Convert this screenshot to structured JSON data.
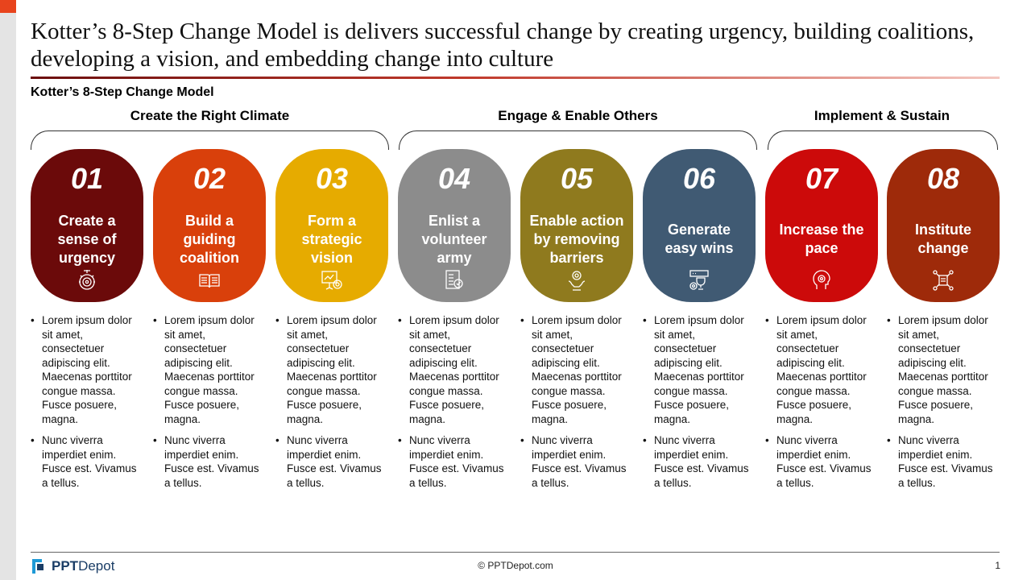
{
  "slide": {
    "title": "Kotter’s 8-Step Change Model is delivers successful change by creating urgency, building coalitions, developing a vision, and embedding change into culture",
    "subtitle": "Kotter’s 8-Step Change Model"
  },
  "groups": [
    {
      "label": "Create the Right Climate"
    },
    {
      "label": "Engage & Enable Others"
    },
    {
      "label": "Implement & Sustain"
    }
  ],
  "steps": [
    {
      "number": "01",
      "label_lines": [
        "Create a",
        "sense of",
        "urgency"
      ],
      "color": "#6b0a0a",
      "icon": "target-gear-icon",
      "bullets": [
        "Lorem ipsum dolor sit amet, consectetuer adipiscing elit. Maecenas porttitor congue massa. Fusce posuere, magna.",
        "Nunc viverra imperdiet enim. Fusce est. Vivamus a tellus."
      ]
    },
    {
      "number": "02",
      "label_lines": [
        "Build a",
        "guiding",
        "coalition"
      ],
      "color": "#d9400b",
      "icon": "open-book-icon",
      "bullets": [
        "Lorem ipsum dolor sit amet, consectetuer adipiscing elit. Maecenas porttitor congue massa. Fusce posuere, magna.",
        "Nunc viverra imperdiet enim. Fusce est. Vivamus a tellus."
      ]
    },
    {
      "number": "03",
      "label_lines": [
        "Form a",
        "strategic",
        "vision"
      ],
      "color": "#e6ab00",
      "icon": "presentation-target-icon",
      "bullets": [
        "Lorem ipsum dolor sit amet, consectetuer adipiscing elit. Maecenas porttitor congue massa. Fusce posuere, magna.",
        "Nunc viverra imperdiet enim. Fusce est. Vivamus a tellus."
      ]
    },
    {
      "number": "04",
      "label_lines": [
        "Enlist a",
        "volunteer",
        "army"
      ],
      "color": "#8c8c8c",
      "icon": "document-badge-icon",
      "bullets": [
        "Lorem ipsum dolor sit amet, consectetuer adipiscing elit. Maecenas porttitor congue massa. Fusce posuere, magna.",
        "Nunc viverra imperdiet enim. Fusce est. Vivamus a tellus."
      ]
    },
    {
      "number": "05",
      "label_lines": [
        "Enable action",
        "by removing",
        "barriers"
      ],
      "color": "#8f7a1e",
      "icon": "hand-gear-icon",
      "bullets": [
        "Lorem ipsum dolor sit amet, consectetuer adipiscing elit. Maecenas porttitor congue massa. Fusce posuere, magna.",
        "Nunc viverra imperdiet enim. Fusce est. Vivamus a tellus."
      ]
    },
    {
      "number": "06",
      "label_lines": [
        "Generate",
        "easy wins"
      ],
      "color": "#405a73",
      "icon": "trophy-gear-icon",
      "bullets": [
        "Lorem ipsum dolor sit amet, consectetuer adipiscing elit. Maecenas porttitor congue massa. Fusce posuere, magna.",
        "Nunc viverra imperdiet enim. Fusce est. Vivamus a tellus."
      ]
    },
    {
      "number": "07",
      "label_lines": [
        "Increase the",
        "pace"
      ],
      "color": "#cc0a0a",
      "icon": "head-gear-icon",
      "bullets": [
        "Lorem ipsum dolor sit amet, consectetuer adipiscing elit. Maecenas porttitor congue massa. Fusce posuere, magna.",
        "Nunc viverra imperdiet enim. Fusce est. Vivamus a tellus."
      ]
    },
    {
      "number": "08",
      "label_lines": [
        "Institute",
        "change"
      ],
      "color": "#9e2a0a",
      "icon": "network-people-icon",
      "bullets": [
        "Lorem ipsum dolor sit amet, consectetuer adipiscing elit. Maecenas porttitor congue massa. Fusce posuere, magna.",
        "Nunc viverra imperdiet enim. Fusce est. Vivamus a tellus."
      ]
    }
  ],
  "footer": {
    "logo_bold": "PPT",
    "logo_thin": "Depot",
    "copyright": "© PPTDepot.com",
    "page": "1"
  }
}
